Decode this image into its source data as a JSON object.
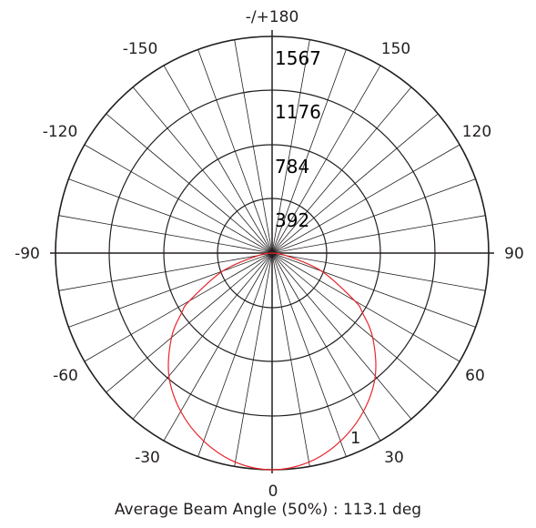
{
  "chart_data": {
    "type": "polar",
    "angle_tick_labels": [
      "-/+180",
      "150",
      "120",
      "90",
      "60",
      "30",
      "0",
      "-30",
      "-60",
      "-90",
      "-120",
      "-150"
    ],
    "radial_tick_labels": [
      "392",
      "784",
      "1176",
      "1567"
    ],
    "r_max": 1567,
    "grid": true,
    "spoke_step_deg": 10,
    "series": [
      {
        "name": "1",
        "color": "#e8252b",
        "angles_deg": [
          0,
          10,
          20,
          30,
          40,
          50,
          56.55,
          60,
          70,
          80,
          90
        ],
        "values": [
          1567,
          1535,
          1447,
          1322,
          1161,
          950,
          784,
          690,
          380,
          100,
          0
        ]
      }
    ],
    "caption": "Average Beam Angle (50%) : 113.1 deg"
  }
}
